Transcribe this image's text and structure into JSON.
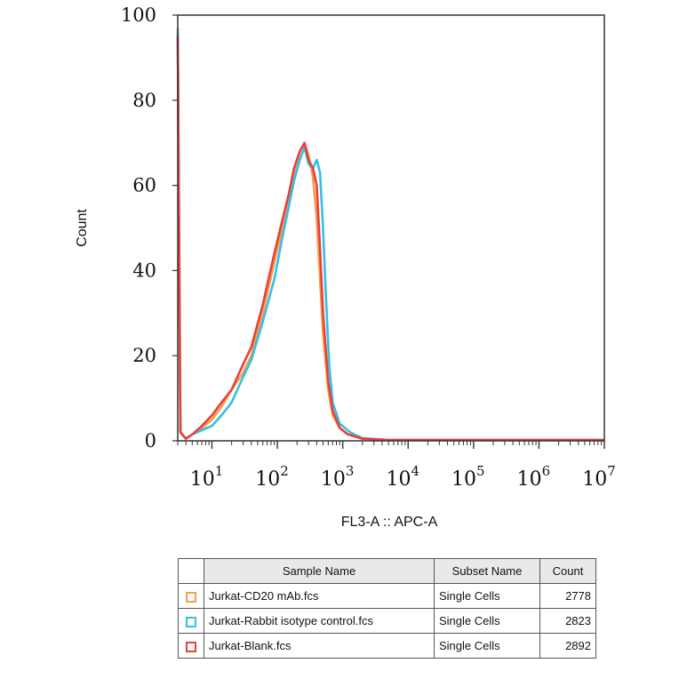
{
  "chart_data": {
    "type": "line",
    "xlabel": "FL3-A :: APC-A",
    "ylabel": "Count",
    "x_scale": "log",
    "xlim": [
      3,
      10000000
    ],
    "ylim": [
      0,
      100
    ],
    "y_ticks": [
      "0",
      "20",
      "40",
      "60",
      "80",
      "100"
    ],
    "x_ticks": [
      {
        "base": "10",
        "exp": "1",
        "value": 10
      },
      {
        "base": "10",
        "exp": "2",
        "value": 100
      },
      {
        "base": "10",
        "exp": "3",
        "value": 1000
      },
      {
        "base": "10",
        "exp": "4",
        "value": 10000
      },
      {
        "base": "10",
        "exp": "5",
        "value": 100000
      },
      {
        "base": "10",
        "exp": "6",
        "value": 1000000
      },
      {
        "base": "10",
        "exp": "7",
        "value": 10000000
      }
    ],
    "series": [
      {
        "name": "Jurkat-CD20 mAb.fcs",
        "color": "#f5a04a",
        "points": [
          [
            3,
            97
          ],
          [
            3.3,
            2
          ],
          [
            4,
            0.5
          ],
          [
            5,
            1.5
          ],
          [
            7,
            3
          ],
          [
            10,
            5
          ],
          [
            14,
            8
          ],
          [
            20,
            12
          ],
          [
            30,
            16
          ],
          [
            40,
            20
          ],
          [
            60,
            30
          ],
          [
            90,
            42
          ],
          [
            120,
            50
          ],
          [
            150,
            57
          ],
          [
            180,
            63
          ],
          [
            220,
            68
          ],
          [
            260,
            70
          ],
          [
            300,
            67
          ],
          [
            350,
            62
          ],
          [
            400,
            52
          ],
          [
            450,
            38
          ],
          [
            500,
            25
          ],
          [
            600,
            12
          ],
          [
            700,
            6
          ],
          [
            900,
            3
          ],
          [
            1200,
            1.5
          ],
          [
            2000,
            0.5
          ],
          [
            5000,
            0.2
          ],
          [
            10000,
            0.2
          ],
          [
            100000,
            0.2
          ],
          [
            1000000,
            0.2
          ],
          [
            10000000,
            0.2
          ]
        ]
      },
      {
        "name": "Jurkat-Rabbit isotype control.fcs",
        "color": "#33bfe8",
        "points": [
          [
            3,
            96
          ],
          [
            3.3,
            2
          ],
          [
            4,
            0.5
          ],
          [
            5,
            1.5
          ],
          [
            7,
            2.5
          ],
          [
            10,
            3.5
          ],
          [
            14,
            6
          ],
          [
            20,
            9
          ],
          [
            30,
            15
          ],
          [
            40,
            19
          ],
          [
            60,
            28
          ],
          [
            90,
            38
          ],
          [
            120,
            48
          ],
          [
            150,
            55
          ],
          [
            180,
            61
          ],
          [
            220,
            66
          ],
          [
            260,
            69
          ],
          [
            300,
            65
          ],
          [
            350,
            64
          ],
          [
            400,
            66
          ],
          [
            450,
            63
          ],
          [
            500,
            50
          ],
          [
            550,
            35
          ],
          [
            620,
            18
          ],
          [
            700,
            9
          ],
          [
            900,
            4
          ],
          [
            1300,
            2
          ],
          [
            2000,
            0.6
          ],
          [
            5000,
            0.2
          ],
          [
            10000,
            0.2
          ],
          [
            100000,
            0.2
          ],
          [
            1000000,
            0.2
          ],
          [
            10000000,
            0.2
          ]
        ]
      },
      {
        "name": "Jurkat-Blank.fcs",
        "color": "#e8403c",
        "points": [
          [
            3,
            95
          ],
          [
            3.3,
            2
          ],
          [
            4,
            0.5
          ],
          [
            5,
            1.5
          ],
          [
            7,
            3.5
          ],
          [
            10,
            6
          ],
          [
            14,
            9
          ],
          [
            20,
            12
          ],
          [
            30,
            18
          ],
          [
            40,
            22
          ],
          [
            60,
            32
          ],
          [
            90,
            44
          ],
          [
            120,
            52
          ],
          [
            150,
            58
          ],
          [
            180,
            64
          ],
          [
            220,
            68
          ],
          [
            260,
            70
          ],
          [
            300,
            66
          ],
          [
            350,
            64
          ],
          [
            400,
            60
          ],
          [
            450,
            45
          ],
          [
            500,
            30
          ],
          [
            600,
            14
          ],
          [
            700,
            7
          ],
          [
            900,
            3
          ],
          [
            1200,
            1.5
          ],
          [
            2000,
            0.5
          ],
          [
            5000,
            0.2
          ],
          [
            10000,
            0.2
          ],
          [
            100000,
            0.2
          ],
          [
            1000000,
            0.2
          ],
          [
            10000000,
            0.2
          ]
        ]
      }
    ]
  },
  "legend": {
    "headers": [
      "Sample Name",
      "Subset Name",
      "Count"
    ],
    "rows": [
      {
        "sample": "Jurkat-CD20 mAb.fcs",
        "subset": "Single Cells",
        "count": "2778",
        "color": "#f5a04a"
      },
      {
        "sample": "Jurkat-Rabbit isotype control.fcs",
        "subset": "Single Cells",
        "count": "2823",
        "color": "#33bfe8"
      },
      {
        "sample": "Jurkat-Blank.fcs",
        "subset": "Single Cells",
        "count": "2892",
        "color": "#e8403c"
      }
    ]
  }
}
